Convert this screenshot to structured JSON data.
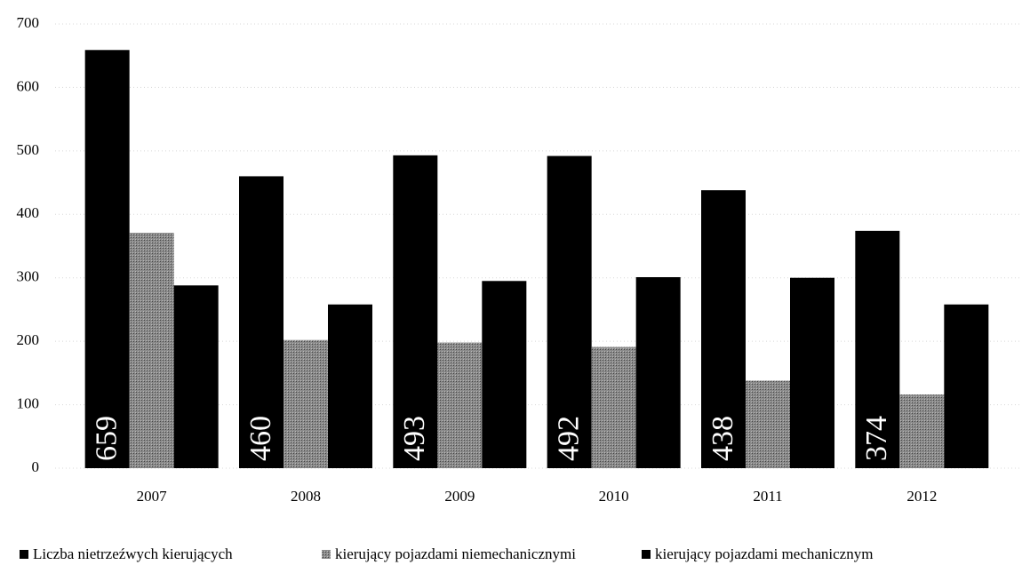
{
  "chart_data": {
    "type": "bar",
    "categories": [
      "2007",
      "2008",
      "2009",
      "2010",
      "2011",
      "2012"
    ],
    "series": [
      {
        "name": "Liczba nietrzeźwych kierujących",
        "color": "#000000",
        "values": [
          659,
          460,
          493,
          492,
          438,
          374
        ],
        "show_labels": true
      },
      {
        "name": "kierujący pojazdami niemechanicznymi",
        "color": "#7a7a7a",
        "values": [
          371,
          202,
          198,
          191,
          138,
          116
        ]
      },
      {
        "name": "kierujący pojazdami mechanicznym",
        "color": "#000000",
        "values": [
          288,
          258,
          295,
          301,
          300,
          258
        ]
      }
    ],
    "ylim": [
      0,
      700
    ],
    "yticks": [
      0,
      100,
      200,
      300,
      400,
      500,
      600,
      700
    ],
    "grid": true,
    "legend": "bottom"
  }
}
